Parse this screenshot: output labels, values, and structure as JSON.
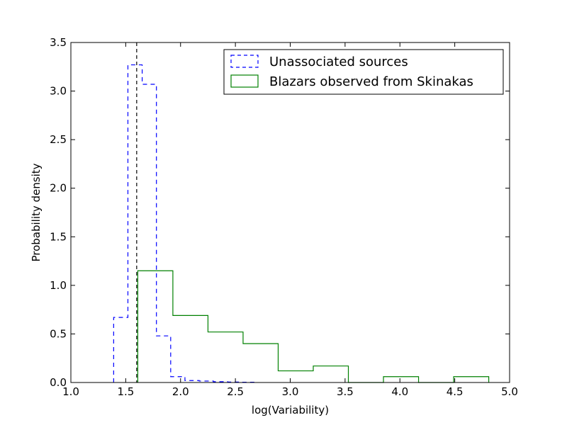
{
  "chart_data": {
    "type": "histogram-step",
    "xlabel": "log(Variability)",
    "ylabel": "Probability density",
    "xlim": [
      1.0,
      5.0
    ],
    "ylim": [
      0.0,
      3.5
    ],
    "x_ticks": [
      "1.0",
      "1.5",
      "2.0",
      "2.5",
      "3.0",
      "3.5",
      "4.0",
      "4.5",
      "5.0"
    ],
    "y_ticks": [
      "0.0",
      "0.5",
      "1.0",
      "1.5",
      "2.0",
      "2.5",
      "3.0",
      "3.5"
    ],
    "legend_position": "top-right",
    "vertical_line": {
      "x": 1.6,
      "style": "dashed",
      "color": "#000000"
    },
    "series": [
      {
        "name": "Unassociated sources",
        "color": "#0000ff",
        "style": "dashed",
        "bin_edges": [
          1.39,
          1.52,
          1.65,
          1.78,
          1.91,
          2.04,
          2.17,
          2.3,
          2.43,
          2.56,
          2.69
        ],
        "values": [
          0.67,
          3.27,
          3.07,
          0.48,
          0.06,
          0.02,
          0.015,
          0.008,
          0.005,
          0.003
        ]
      },
      {
        "name": "Blazars observed from Skinakas",
        "color": "#008000",
        "style": "solid",
        "bin_edges": [
          1.61,
          1.93,
          2.25,
          2.57,
          2.89,
          3.21,
          3.53,
          3.85,
          4.17,
          4.49,
          4.81
        ],
        "values": [
          1.15,
          0.69,
          0.52,
          0.4,
          0.12,
          0.17,
          0.0,
          0.06,
          0.0,
          0.06
        ]
      }
    ]
  }
}
